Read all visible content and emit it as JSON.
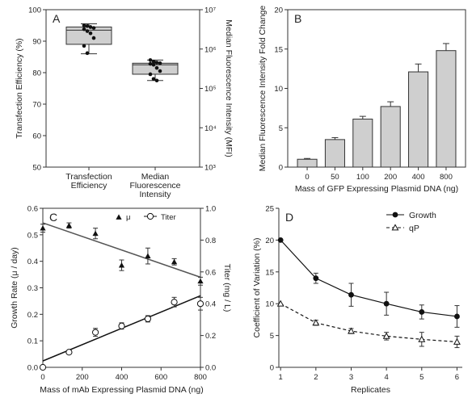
{
  "chart_data": [
    {
      "panel": "A",
      "type": "box",
      "categories": [
        "Transfection Efficiency",
        "Median Fluorescence Intensity"
      ],
      "category_labels": [
        [
          "Transfection",
          "Efficiency"
        ],
        [
          "Median",
          "Fluorescence",
          "Intensity"
        ]
      ],
      "ylabel_left": "Transfection Efficiency (%)",
      "ylabel_right": "Median Fluorescence Intensity (MFI)",
      "ylim_left": [
        50,
        100
      ],
      "yticks_left": [
        50,
        60,
        70,
        80,
        90,
        100
      ],
      "ylim_right_log10": [
        3,
        7
      ],
      "yticks_right": [
        "10³",
        "10⁴",
        "10⁵",
        "10⁶",
        "10⁷"
      ],
      "boxes": [
        {
          "axis": "left",
          "min": 86,
          "q1": 89,
          "median": 93.5,
          "q3": 94.5,
          "max": 95.5,
          "points": [
            95,
            94.8,
            94.5,
            94.2,
            93.8,
            93.2,
            92.5,
            91,
            88.5,
            86.2
          ]
        },
        {
          "axis": "left",
          "min": 77.5,
          "q1": 79.5,
          "median": 82.5,
          "q3": 83,
          "max": 84,
          "points": [
            84,
            83.5,
            83.2,
            83,
            82.8,
            82.5,
            81.5,
            80.5,
            79.5,
            78,
            77.5
          ]
        }
      ]
    },
    {
      "panel": "B",
      "type": "bar",
      "categories": [
        "0",
        "50",
        "100",
        "200",
        "400",
        "800"
      ],
      "values": [
        1.0,
        3.5,
        6.1,
        7.7,
        12.1,
        14.8
      ],
      "errors": [
        0.1,
        0.25,
        0.35,
        0.6,
        1.0,
        0.9
      ],
      "xlabel": "Mass of GFP Expressing Plasmid DNA (ng)",
      "ylabel": "Median Fluorescence Intensity Fold Change",
      "ylim": [
        0,
        20
      ],
      "yticks": [
        0,
        5,
        10,
        15,
        20
      ]
    },
    {
      "panel": "C",
      "type": "scatter",
      "xlabel": "Mass of mAb Expressing Plasmid DNA (ng)",
      "ylabel_left": "Growth Rate (μ / day)",
      "ylabel_right": "Titer (mg / L)",
      "xlim": [
        0,
        800
      ],
      "xticks": [
        0,
        200,
        400,
        600,
        800
      ],
      "ylim_left": [
        0,
        0.6
      ],
      "yticks_left": [
        "0.0",
        "0.1",
        "0.2",
        "0.3",
        "0.4",
        "0.5",
        "0.6"
      ],
      "ylim_right": [
        0,
        1.0
      ],
      "yticks_right": [
        "0.0",
        "0.2",
        "0.4",
        "0.6",
        "0.8",
        "1.0"
      ],
      "legend": [
        {
          "name": "μ",
          "marker": "filled-triangle"
        },
        {
          "name": "Titer",
          "marker": "open-circle"
        }
      ],
      "series": [
        {
          "name": "μ",
          "axis": "left",
          "x": [
            0,
            133,
            267,
            400,
            533,
            667,
            800
          ],
          "y": [
            0.525,
            0.535,
            0.505,
            0.385,
            0.42,
            0.398,
            0.325
          ],
          "err": [
            0.015,
            0.01,
            0.02,
            0.02,
            0.03,
            0.012,
            0.015
          ],
          "fit": [
            [
              0,
              0.545
            ],
            [
              800,
              0.34
            ]
          ]
        },
        {
          "name": "Titer",
          "axis": "right",
          "x": [
            0,
            133,
            267,
            400,
            533,
            667,
            800
          ],
          "y": [
            0.0,
            0.095,
            0.22,
            0.26,
            0.305,
            0.41,
            0.4
          ],
          "err": [
            0.005,
            0.01,
            0.025,
            0.02,
            0.02,
            0.03,
            0.04
          ],
          "fit": [
            [
              0,
              0.04
            ],
            [
              800,
              0.45
            ]
          ]
        }
      ]
    },
    {
      "panel": "D",
      "type": "line",
      "xlabel": "Replicates",
      "ylabel": "Coefficient of Variation (%)",
      "x": [
        1,
        2,
        3,
        4,
        5,
        6
      ],
      "xlim": [
        1,
        6
      ],
      "ylim": [
        0,
        25
      ],
      "yticks": [
        0,
        5,
        10,
        15,
        20,
        25
      ],
      "legend": [
        {
          "name": "Growth",
          "marker": "filled-circle"
        },
        {
          "name": "qP",
          "marker": "open-triangle"
        }
      ],
      "series": [
        {
          "name": "Growth",
          "values": [
            20,
            14,
            11.4,
            10,
            8.7,
            8
          ],
          "err": [
            0,
            0.8,
            1.8,
            1.8,
            1.1,
            1.7
          ]
        },
        {
          "name": "qP",
          "values": [
            10,
            7,
            5.7,
            4.9,
            4.4,
            4
          ],
          "err": [
            0,
            0.4,
            0.4,
            0.6,
            1.1,
            0.9
          ]
        }
      ]
    }
  ]
}
